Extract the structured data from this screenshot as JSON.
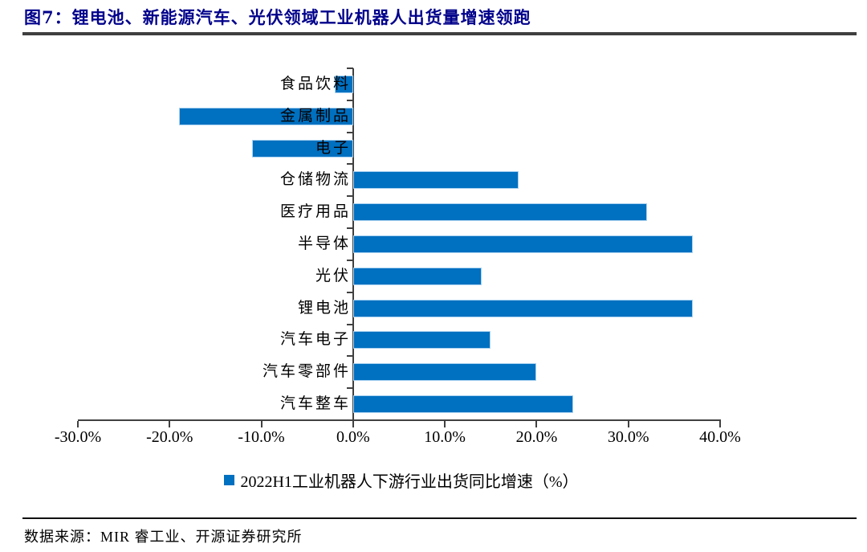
{
  "header": {
    "title": "图7：锂电池、新能源汽车、光伏领域工业机器人出货量增速领跑"
  },
  "chart_data": {
    "type": "bar",
    "orientation": "horizontal",
    "title": "图7：锂电池、新能源汽车、光伏领域工业机器人出货量增速领跑",
    "categories": [
      "食品饮料",
      "金属制品",
      "电子",
      "仓储物流",
      "医疗用品",
      "半导体",
      "光伏",
      "锂电池",
      "汽车电子",
      "汽车零部件",
      "汽车整车"
    ],
    "values": [
      -2,
      -19,
      -11,
      18,
      32,
      37,
      14,
      37,
      15,
      20,
      24
    ],
    "unit": "%",
    "legend": [
      "2022H1工业机器人下游行业出货同比增速（%）"
    ],
    "legend_position": "bottom",
    "x_ticks": [
      "-30.0%",
      "-20.0%",
      "-10.0%",
      "0.0%",
      "10.0%",
      "20.0%",
      "30.0%",
      "40.0%"
    ],
    "x_tick_values": [
      -30,
      -20,
      -10,
      0,
      10,
      20,
      30,
      40
    ],
    "xlim": [
      -30,
      40
    ],
    "grid": false,
    "bar_color": "#0070C0",
    "accent_color": "#00008B"
  },
  "footer": {
    "source": "数据来源：MIR 睿工业、开源证券研究所"
  }
}
